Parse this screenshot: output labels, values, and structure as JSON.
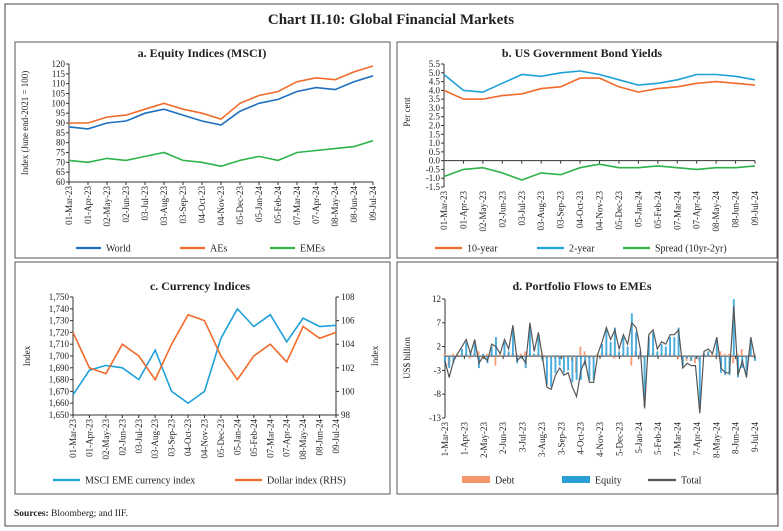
{
  "title": "Chart II.10: Global Financial Markets",
  "sources_label": "Sources:",
  "sources_text": " Bloomberg; and IIF.",
  "chart_data": [
    {
      "panel": "a",
      "type": "line",
      "title": "a. Equity Indices (MSCI)",
      "ylabel": "Index (June end-2021 = 100)",
      "ylim": [
        60,
        120
      ],
      "y_ticks": [
        "60",
        "65",
        "70",
        "75",
        "80",
        "85",
        "90",
        "95",
        "100",
        "105",
        "110",
        "115",
        "120"
      ],
      "x_ticks": [
        "01-Mar-23",
        "01-Apr-23",
        "02-May-23",
        "02-Jun-23",
        "03-Jul-23",
        "03-Aug-23",
        "03-Sep-23",
        "04-Oct-23",
        "04-Nov-23",
        "05-Dec-23",
        "05-Jan-24",
        "05-Feb-24",
        "07-Mar-24",
        "07-Apr-24",
        "08-May-24",
        "08-Jun-24",
        "09-Jul-24"
      ],
      "legend": "bottom",
      "series": [
        {
          "name": "World",
          "color": "#1f6fc0",
          "values": [
            88,
            87,
            90,
            91,
            95,
            97,
            94,
            91,
            89,
            96,
            100,
            102,
            106,
            108,
            107,
            111,
            114
          ]
        },
        {
          "name": "AEs",
          "color": "#f26b2a",
          "values": [
            90,
            90,
            93,
            94,
            97,
            100,
            97,
            95,
            92,
            100,
            104,
            106,
            111,
            113,
            112,
            116,
            119
          ]
        },
        {
          "name": "EMEs",
          "color": "#2db34a",
          "values": [
            71,
            70,
            72,
            71,
            73,
            75,
            71,
            70,
            68,
            71,
            73,
            71,
            75,
            76,
            77,
            78,
            81
          ]
        }
      ]
    },
    {
      "panel": "b",
      "type": "line",
      "title": "b. US  Government Bond Yields",
      "ylabel": "Per cent",
      "ylim": [
        -1.5,
        5.5
      ],
      "y_ticks": [
        "-1.5",
        "-1.0",
        "-0.5",
        "0.0",
        "0.5",
        "1.0",
        "1.5",
        "2.0",
        "2.5",
        "3.0",
        "3.5",
        "4.0",
        "4.5",
        "5.0",
        "5.5"
      ],
      "x_ticks": [
        "01-Mar-23",
        "01-Apr-23",
        "02-May-23",
        "02-Jun-23",
        "03-Jul-23",
        "03-Aug-23",
        "03-Sep-23",
        "04-Oct-23",
        "04-Nov-23",
        "05-Dec-23",
        "05-Jan-24",
        "05-Feb-24",
        "07-Mar-24",
        "07-Apr-24",
        "08-May-24",
        "08-Jun-24",
        "09-Jul-24"
      ],
      "legend": "bottom",
      "series": [
        {
          "name": "10-year",
          "color": "#f26b2a",
          "values": [
            4.0,
            3.5,
            3.5,
            3.7,
            3.8,
            4.1,
            4.2,
            4.7,
            4.7,
            4.2,
            3.9,
            4.1,
            4.2,
            4.4,
            4.5,
            4.4,
            4.3
          ]
        },
        {
          "name": "2-year",
          "color": "#1ea0d8",
          "values": [
            4.9,
            4.0,
            3.9,
            4.4,
            4.9,
            4.8,
            5.0,
            5.1,
            4.9,
            4.6,
            4.3,
            4.4,
            4.6,
            4.9,
            4.9,
            4.8,
            4.6
          ]
        },
        {
          "name": "Spread (10yr-2yr)",
          "color": "#2db34a",
          "values": [
            -0.9,
            -0.5,
            -0.4,
            -0.7,
            -1.1,
            -0.7,
            -0.8,
            -0.4,
            -0.2,
            -0.4,
            -0.4,
            -0.3,
            -0.4,
            -0.5,
            -0.4,
            -0.4,
            -0.3
          ]
        }
      ]
    },
    {
      "panel": "c",
      "type": "line",
      "title": "c. Currency Indices",
      "ylabel": "Index",
      "ylabel_right": "Index",
      "ylim": [
        1650,
        1750
      ],
      "ylim_right": [
        98,
        108
      ],
      "y_ticks": [
        "1,650",
        "1,660",
        "1,670",
        "1,680",
        "1,690",
        "1,700",
        "1,710",
        "1,720",
        "1,730",
        "1,740",
        "1,750"
      ],
      "y_ticks_right": [
        "98",
        "100",
        "102",
        "104",
        "106",
        "108"
      ],
      "x_ticks": [
        "01-Mar-23",
        "01-Apr-23",
        "02-May-23",
        "02-Jun-23",
        "03-Jul-23",
        "03-Aug-23",
        "03-Sep-23",
        "04-Oct-23",
        "04-Nov-23",
        "05-Dec-23",
        "05-Jan-24",
        "05-Feb-24",
        "07-Mar-24",
        "07-Apr-24",
        "08-May-24",
        "08-Jun-24",
        "09-Jul-24"
      ],
      "legend": "bottom",
      "series": [
        {
          "name": "MSCI EME currency index",
          "color": "#1ea0d8",
          "axis": "left",
          "values": [
            1667,
            1688,
            1692,
            1690,
            1680,
            1705,
            1670,
            1660,
            1670,
            1715,
            1740,
            1725,
            1735,
            1712,
            1732,
            1725,
            1726
          ]
        },
        {
          "name": "Dollar index (RHS)",
          "color": "#f26b2a",
          "axis": "right",
          "values": [
            105,
            102,
            101.5,
            104,
            103,
            101,
            104,
            106.5,
            106,
            103,
            101,
            103,
            104,
            102.5,
            105.5,
            104.5,
            105
          ]
        }
      ]
    },
    {
      "panel": "d",
      "type": "bar",
      "title": "d. Portfolio Flows to EMEs",
      "ylabel": "US$ billion",
      "ylim": [
        -13,
        12
      ],
      "y_ticks": [
        "-13",
        "-8",
        "-3",
        "2",
        "7",
        "12"
      ],
      "x_ticks": [
        "1-Mar-23",
        "1-Apr-23",
        "2-May-23",
        "2-Jun-23",
        "3-Jul-23",
        "3-Aug-23",
        "3-Sep-23",
        "4-Oct-23",
        "4-Nov-23",
        "5-Dec-23",
        "5-Jan-24",
        "5-Feb-24",
        "7-Mar-24",
        "7-Apr-24",
        "8-May-24",
        "8-Jun-24",
        "9-Jul-24"
      ],
      "legend": "bottom",
      "series": [
        {
          "name": "Debt",
          "color": "#f4976c",
          "kind": "bar",
          "values": [
            0.5,
            -2,
            0.5,
            0.5,
            0.5,
            0.5,
            -0.5,
            0.5,
            1,
            -0.5,
            0.5,
            0.5,
            -2,
            0.5,
            0.5,
            0.5,
            0.5,
            0.5,
            0.5,
            1,
            0.5,
            0.5,
            0.5,
            0.5,
            -0.5,
            -0.5,
            -0.5,
            -0.5,
            -0.5,
            -0.5,
            -1,
            -3.5,
            2,
            1,
            -0.5,
            -0.5,
            0.5,
            0.5,
            0.5,
            0.5,
            -0.5,
            0.5,
            0.5,
            0.5,
            -2,
            1,
            0.5,
            -0.5,
            0.5,
            0.5,
            0.5,
            0.5,
            0.5,
            0.5,
            0.5,
            -0.5,
            -0.5,
            -1,
            -1,
            -1.5,
            -1,
            0.5,
            0.5,
            0.5,
            0.5,
            1,
            0.5,
            0.5,
            -1.5,
            0.5,
            1.5,
            -0.5,
            0.5,
            0.5
          ]
        },
        {
          "name": "Equity",
          "color": "#2a9fd6",
          "kind": "bar",
          "values": [
            -1.5,
            -2.5,
            -1.5,
            0,
            1.5,
            3,
            1,
            3,
            -2.5,
            0.5,
            -1.5,
            2,
            4,
            0,
            3,
            1,
            6,
            -1.5,
            -0.5,
            -2.5,
            6.5,
            0.5,
            4.5,
            -1,
            -6,
            -6.5,
            -3.5,
            -2,
            -3.5,
            -3,
            -5.5,
            -5,
            -5,
            -2,
            -5,
            -5,
            0,
            2.5,
            5.5,
            3,
            6,
            1,
            4,
            2,
            9,
            5,
            1,
            -10.5,
            4,
            5,
            1,
            2.5,
            2,
            4,
            4,
            6,
            -2,
            -0.5,
            -1,
            -0.5,
            -11,
            0.5,
            1,
            0,
            3.5,
            -3.5,
            -4,
            -4,
            12,
            -4.5,
            -2.5,
            -4,
            3.5,
            -1
          ]
        },
        {
          "name": "Total",
          "color": "#555555",
          "kind": "line",
          "values": [
            -1,
            -4.5,
            -1,
            0.5,
            2,
            3.5,
            0.5,
            3.5,
            -1.5,
            0,
            -1,
            2.5,
            2,
            0.5,
            3.5,
            1.5,
            6.5,
            -1,
            0,
            -1.5,
            7,
            1,
            5,
            -0.5,
            -6.5,
            -7,
            -4,
            -2.5,
            -4,
            -3.5,
            -6.5,
            -8.5,
            -3,
            -1,
            -5.5,
            -5.5,
            0.5,
            3,
            6,
            3.5,
            5.5,
            1.5,
            4.5,
            2.5,
            7,
            6,
            1.5,
            -11,
            4.5,
            5.5,
            1.5,
            3,
            2.5,
            4.5,
            4.5,
            5.5,
            -2.5,
            -1.5,
            -2,
            -2,
            -12,
            1,
            1.5,
            0.5,
            4,
            -2.5,
            -3.5,
            -3.5,
            10.5,
            -4,
            -1,
            -4.5,
            4,
            -0.5
          ]
        }
      ]
    }
  ]
}
